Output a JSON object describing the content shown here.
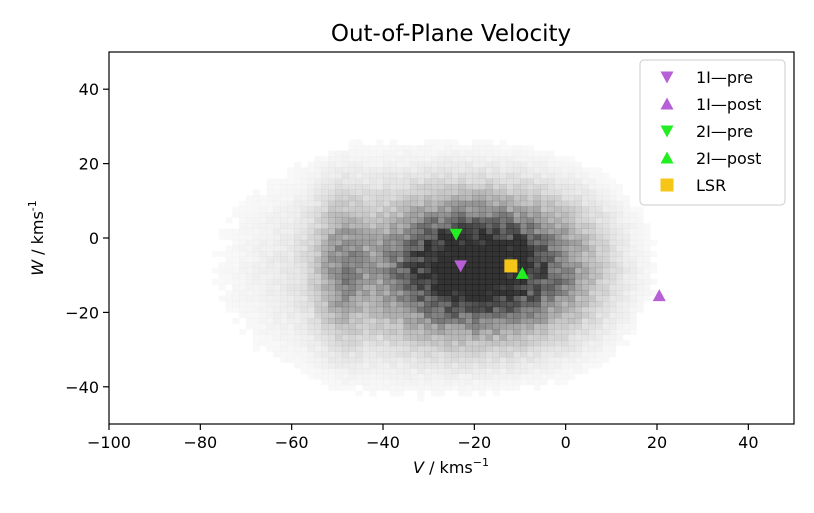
{
  "chart_data": {
    "type": "scatter",
    "title": "Out-of-Plane Velocity",
    "xlabel": {
      "italic": "V",
      "rest": " / kms",
      "sup": "−1"
    },
    "ylabel": {
      "italic": "W",
      "rest": " / kms",
      "sup": "-1"
    },
    "xlim": [
      -100,
      50
    ],
    "ylim": [
      -50,
      50
    ],
    "x_ticks": [
      -100,
      -80,
      -60,
      -40,
      -20,
      0,
      20,
      40
    ],
    "x_tick_labels": [
      "−100",
      "−80",
      "−60",
      "−40",
      "−20",
      "0",
      "20",
      "40"
    ],
    "y_ticks": [
      -40,
      -20,
      0,
      20,
      40
    ],
    "y_tick_labels": [
      "−40",
      "−20",
      "0",
      "20",
      "40"
    ],
    "grid": false,
    "legend_position": "top-right",
    "background_histogram": {
      "description_free": true,
      "color": "#000000",
      "clusters": [
        {
          "x": -22,
          "y": -8,
          "sx": 11,
          "sy": 11,
          "w": 1.0
        },
        {
          "x": -49,
          "y": -8,
          "sx": 3.5,
          "sy": 12,
          "w": 0.35
        },
        {
          "x": -5,
          "y": -8,
          "sx": 10,
          "sy": 12,
          "w": 0.45
        },
        {
          "x": -35,
          "y": -8,
          "sx": 20,
          "sy": 16,
          "w": 0.25
        }
      ]
    },
    "series": [
      {
        "name": "1I—pre",
        "marker": "triangle-down",
        "color": "#b65fd6",
        "points": [
          {
            "x": -23,
            "y": -7.5
          }
        ]
      },
      {
        "name": "1I—post",
        "marker": "triangle-up",
        "color": "#b65fd6",
        "points": [
          {
            "x": 20.5,
            "y": -15.5
          }
        ]
      },
      {
        "name": "2I—pre",
        "marker": "triangle-down",
        "color": "#22ee22",
        "points": [
          {
            "x": -24,
            "y": 1
          }
        ]
      },
      {
        "name": "2I—post",
        "marker": "triangle-up",
        "color": "#22ee22",
        "points": [
          {
            "x": -9.5,
            "y": -9.5
          }
        ]
      },
      {
        "name": "LSR",
        "marker": "square",
        "color": "#f5c518",
        "points": [
          {
            "x": -12,
            "y": -7.5
          }
        ]
      }
    ]
  }
}
